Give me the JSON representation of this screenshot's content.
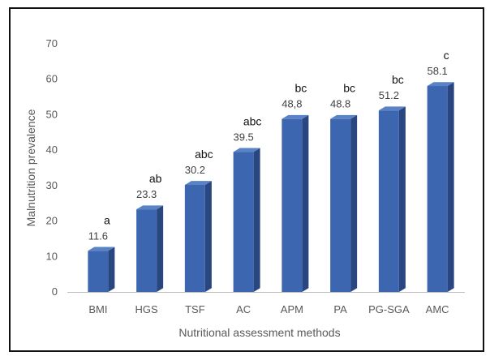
{
  "chart_data": {
    "type": "bar",
    "title": "",
    "xlabel": "Nutritional assessment methods",
    "ylabel": "Malnutrition prevalence",
    "ylim": [
      0,
      70
    ],
    "yticks": [
      "0",
      "10",
      "20",
      "30",
      "40",
      "50",
      "60",
      "70"
    ],
    "grid": false,
    "categories": [
      "BMI",
      "HGS",
      "TSF",
      "AC",
      "APM",
      "PA",
      "PG-SGA",
      "AMC"
    ],
    "values": [
      11.6,
      23.3,
      30.2,
      39.5,
      48.8,
      48.8,
      51.2,
      58.1
    ],
    "data_labels": [
      "11.6",
      "23.3",
      "30.2",
      "39.5",
      "48,8",
      "48.8",
      "51.2",
      "58.1"
    ],
    "significance_letters": [
      "a",
      "ab",
      "abc",
      "abc",
      "bc",
      "bc",
      "bc",
      "c"
    ],
    "colors": {
      "bar_front": "#3c67b0",
      "bar_side": "#2a4680",
      "bar_top": "#5a82c6",
      "axis": "#bfbfbf"
    }
  }
}
